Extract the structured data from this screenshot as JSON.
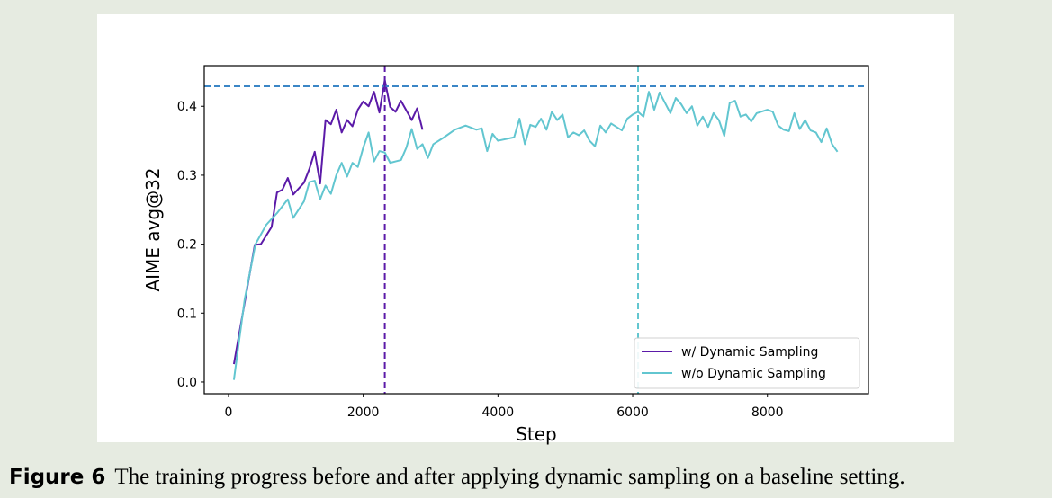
{
  "chart_data": {
    "type": "line",
    "xlabel": "Step",
    "ylabel": "AIME avg@32",
    "xlim": [
      -360,
      9500
    ],
    "ylim": [
      -0.017,
      0.459
    ],
    "xticks": [
      0,
      2000,
      4000,
      6000,
      8000
    ],
    "yticks": [
      {
        "value": 0,
        "label": "0.0"
      },
      0.1,
      0.2,
      0.3,
      0.4
    ],
    "legend": "lower right",
    "reference_lines": [
      {
        "axis": "y",
        "value": 0.429,
        "color": "#3b86c6"
      },
      {
        "axis": "x",
        "value": 2320,
        "color": "#5b1aa8"
      },
      {
        "axis": "x",
        "value": 6080,
        "color": "#62c6d0"
      }
    ],
    "series": [
      {
        "name": "w/ Dynamic Sampling",
        "color": "#5b1aa8",
        "x": [
          80,
          390,
          480,
          640,
          720,
          800,
          880,
          960,
          1120,
          1200,
          1280,
          1360,
          1440,
          1520,
          1600,
          1680,
          1760,
          1840,
          1920,
          2000,
          2080,
          2160,
          2240,
          2320,
          2400,
          2480,
          2560,
          2640,
          2720,
          2800,
          2880
        ],
        "values": [
          0.026,
          0.199,
          0.2,
          0.225,
          0.275,
          0.279,
          0.296,
          0.272,
          0.289,
          0.309,
          0.334,
          0.288,
          0.38,
          0.374,
          0.395,
          0.362,
          0.38,
          0.371,
          0.395,
          0.407,
          0.4,
          0.421,
          0.391,
          0.438,
          0.399,
          0.392,
          0.408,
          0.394,
          0.38,
          0.397,
          0.366
        ]
      },
      {
        "name": "w/o Dynamic Sampling",
        "color": "#62c6d0",
        "x": [
          80,
          240,
          400,
          560,
          720,
          880,
          960,
          1120,
          1200,
          1280,
          1360,
          1440,
          1520,
          1600,
          1680,
          1760,
          1840,
          1920,
          2000,
          2080,
          2160,
          2240,
          2320,
          2400,
          2480,
          2560,
          2640,
          2720,
          2800,
          2880,
          2960,
          3040,
          3200,
          3360,
          3520,
          3680,
          3760,
          3840,
          3920,
          4000,
          4240,
          4320,
          4400,
          4480,
          4560,
          4640,
          4720,
          4800,
          4880,
          4960,
          5040,
          5120,
          5200,
          5280,
          5360,
          5440,
          5520,
          5600,
          5680,
          5840,
          5920,
          6000,
          6080,
          6160,
          6240,
          6320,
          6400,
          6480,
          6560,
          6640,
          6720,
          6800,
          6880,
          6960,
          7040,
          7120,
          7200,
          7280,
          7360,
          7440,
          7520,
          7600,
          7680,
          7760,
          7840,
          8000,
          8080,
          8160,
          8240,
          8320,
          8400,
          8480,
          8560,
          8640,
          8720,
          8800,
          8880,
          8960,
          9040
        ],
        "values": [
          0.003,
          0.12,
          0.2,
          0.228,
          0.245,
          0.265,
          0.238,
          0.262,
          0.29,
          0.292,
          0.265,
          0.285,
          0.273,
          0.3,
          0.318,
          0.298,
          0.318,
          0.312,
          0.34,
          0.362,
          0.32,
          0.335,
          0.333,
          0.318,
          0.32,
          0.322,
          0.34,
          0.367,
          0.338,
          0.345,
          0.325,
          0.345,
          0.355,
          0.366,
          0.372,
          0.366,
          0.368,
          0.335,
          0.36,
          0.35,
          0.355,
          0.382,
          0.345,
          0.373,
          0.37,
          0.382,
          0.366,
          0.392,
          0.38,
          0.388,
          0.355,
          0.362,
          0.358,
          0.365,
          0.35,
          0.342,
          0.372,
          0.362,
          0.375,
          0.365,
          0.382,
          0.388,
          0.392,
          0.385,
          0.421,
          0.395,
          0.42,
          0.405,
          0.39,
          0.412,
          0.403,
          0.39,
          0.4,
          0.372,
          0.385,
          0.37,
          0.39,
          0.38,
          0.357,
          0.405,
          0.408,
          0.385,
          0.388,
          0.378,
          0.39,
          0.395,
          0.392,
          0.372,
          0.366,
          0.364,
          0.39,
          0.367,
          0.38,
          0.365,
          0.362,
          0.348,
          0.368,
          0.345,
          0.334
        ]
      }
    ]
  },
  "caption": {
    "label": "Figure 6",
    "text": "The training progress before and after applying dynamic sampling on a baseline setting."
  }
}
